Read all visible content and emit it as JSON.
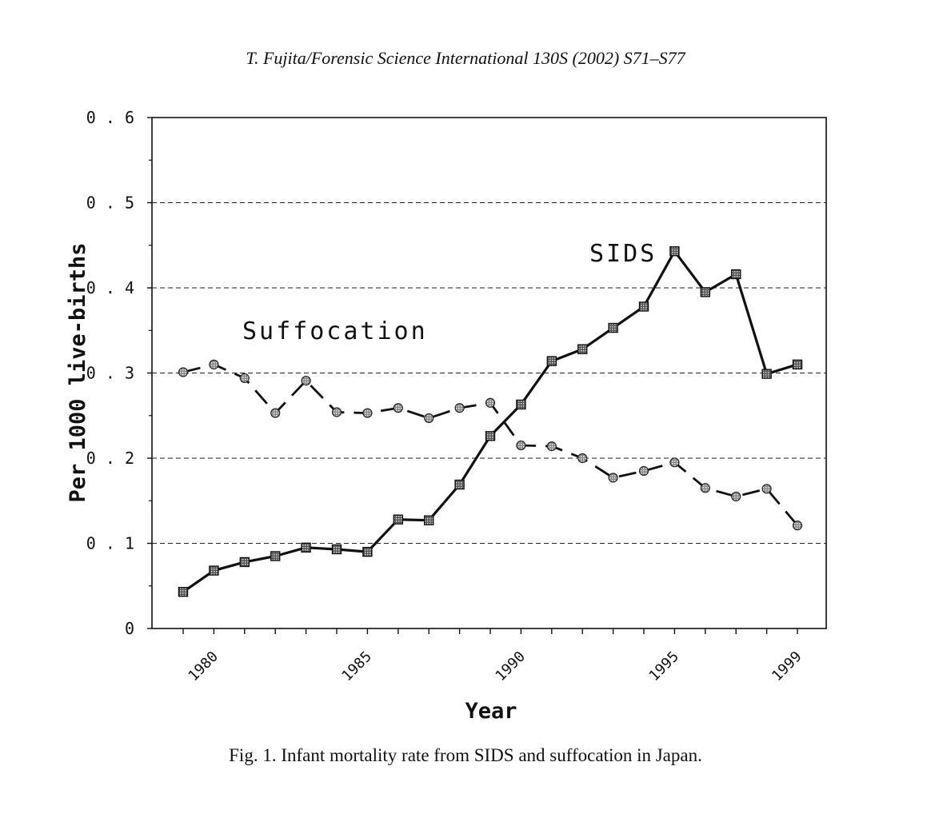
{
  "header": "T. Fujita/Forensic Science International 130S (2002) S71–S77",
  "caption": "Fig. 1. Infant mortality rate from SIDS and suffocation in Japan.",
  "chart_data": {
    "type": "line",
    "title": "",
    "xlabel": "Year",
    "ylabel": "Per 1000 live-births",
    "ylim": [
      0,
      0.6
    ],
    "y_ticks": [
      "0",
      "0.1",
      "0.2",
      "0.3",
      "0.4",
      "0.5",
      "0.6"
    ],
    "x_tick_labels": [
      "1980",
      "1985",
      "1990",
      "1995",
      "1999"
    ],
    "x": [
      1979,
      1980,
      1981,
      1982,
      1983,
      1984,
      1985,
      1986,
      1987,
      1988,
      1989,
      1990,
      1991,
      1992,
      1993,
      1994,
      1995,
      1996,
      1997,
      1998,
      1999
    ],
    "grid": "dashed horizontal at 0.1 intervals",
    "series": [
      {
        "name": "SIDS",
        "style": "solid",
        "marker": "square",
        "values": [
          0.043,
          0.068,
          0.078,
          0.085,
          0.095,
          0.093,
          0.09,
          0.128,
          0.127,
          0.169,
          0.226,
          0.263,
          0.314,
          0.328,
          0.353,
          0.378,
          0.443,
          0.395,
          0.416,
          0.299,
          0.31
        ]
      },
      {
        "name": "Suffocation",
        "style": "dashed",
        "marker": "circle",
        "values": [
          0.301,
          0.31,
          0.294,
          0.253,
          0.291,
          0.254,
          0.253,
          0.259,
          0.247,
          0.259,
          0.265,
          0.215,
          0.214,
          0.2,
          0.177,
          0.185,
          0.195,
          0.165,
          0.155,
          0.164,
          0.121
        ]
      }
    ],
    "series_labels": [
      {
        "text": "SIDS",
        "for": "SIDS"
      },
      {
        "text": "Suffocation",
        "for": "Suffocation"
      }
    ]
  }
}
